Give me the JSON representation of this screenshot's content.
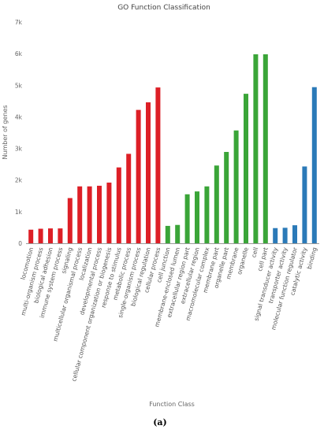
{
  "chart_data": {
    "type": "bar",
    "title": "GO Function Classification",
    "xlabel": "Function Class",
    "ylabel": "Number of genes",
    "ylim": [
      0,
      7000
    ],
    "yticks": [
      "0",
      "1k",
      "2k",
      "3k",
      "4k",
      "5k",
      "6k",
      "7k"
    ],
    "grid": false,
    "categories": [
      "locomotion",
      "multi-organism process",
      "biological adhesion",
      "immune system process",
      "signaling",
      "multicellular organismal process",
      "localization",
      "developmental process",
      "cellular component organization or biogenesis",
      "response to stimulus",
      "metabolic process",
      "single-organism process",
      "biological regulation",
      "cellular process",
      "cell junction",
      "membrane-enclosed lumen",
      "extracellular region part",
      "extracellular region",
      "macromolecular complex",
      "membrane part",
      "organelle part",
      "membrane",
      "organelle",
      "cell",
      "cell part",
      "signal transducer activity",
      "transporter activity",
      "molecular function regulator",
      "catalytic activity",
      "binding"
    ],
    "values": [
      430,
      460,
      470,
      470,
      1430,
      1800,
      1800,
      1820,
      1920,
      2400,
      2830,
      4220,
      4460,
      4930,
      550,
      580,
      1550,
      1640,
      1800,
      2460,
      2890,
      3570,
      4730,
      5980,
      5980,
      480,
      490,
      570,
      2430,
      4940
    ],
    "bar_colors": [
      "#dd1f26",
      "#dd1f26",
      "#dd1f26",
      "#dd1f26",
      "#dd1f26",
      "#dd1f26",
      "#dd1f26",
      "#dd1f26",
      "#dd1f26",
      "#dd1f26",
      "#dd1f26",
      "#dd1f26",
      "#dd1f26",
      "#dd1f26",
      "#3aa538",
      "#3aa538",
      "#3aa538",
      "#3aa538",
      "#3aa538",
      "#3aa538",
      "#3aa538",
      "#3aa538",
      "#3aa538",
      "#3aa538",
      "#3aa538",
      "#2b7ab8",
      "#2b7ab8",
      "#2b7ab8",
      "#2b7ab8",
      "#2b7ab8"
    ],
    "axis_color": "#999999"
  },
  "caption": "(a)"
}
